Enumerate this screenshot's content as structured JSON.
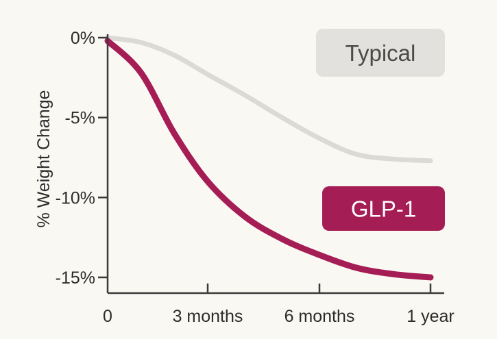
{
  "chart_data": {
    "type": "line",
    "ylabel": "% Weight Change",
    "xlabel": "",
    "x_ticks": [
      {
        "label": "0",
        "value": 0
      },
      {
        "label": "3 months",
        "value": 3
      },
      {
        "label": "6 months",
        "value": 6
      },
      {
        "label": "1 year",
        "value": 12
      }
    ],
    "y_ticks": [
      {
        "label": "0%",
        "value": 0
      },
      {
        "label": "-5%",
        "value": -5
      },
      {
        "label": "-10%",
        "value": -10
      },
      {
        "label": "-15%",
        "value": -15
      }
    ],
    "xlim": [
      0,
      12.3
    ],
    "ylim": [
      -15.8,
      0
    ],
    "x_scale": "nonlinear: 0, 3 months, 6 months, 1 year evenly spaced",
    "grid": false,
    "legend": "inline labels at right",
    "series": [
      {
        "name": "Typical",
        "color": "#dcdad6",
        "label_bg": "#e3e1dd",
        "label_color": "#4a4a4a",
        "points": [
          [
            0,
            0
          ],
          [
            1,
            -0.3
          ],
          [
            2,
            -1.1
          ],
          [
            3,
            -2.3
          ],
          [
            4,
            -3.6
          ],
          [
            5,
            -5.0
          ],
          [
            6,
            -6.3
          ],
          [
            8,
            -7.3
          ],
          [
            10,
            -7.6
          ],
          [
            12,
            -7.7
          ]
        ]
      },
      {
        "name": "GLP-1",
        "color": "#a51d55",
        "label_bg": "#a51d55",
        "label_color": "#ffffff",
        "points": [
          [
            0,
            -0.2
          ],
          [
            1,
            -2.2
          ],
          [
            2,
            -6.0
          ],
          [
            3,
            -9.0
          ],
          [
            4,
            -11.2
          ],
          [
            5,
            -12.6
          ],
          [
            6,
            -13.6
          ],
          [
            8,
            -14.4
          ],
          [
            10,
            -14.8
          ],
          [
            12,
            -15.0
          ]
        ]
      }
    ]
  }
}
